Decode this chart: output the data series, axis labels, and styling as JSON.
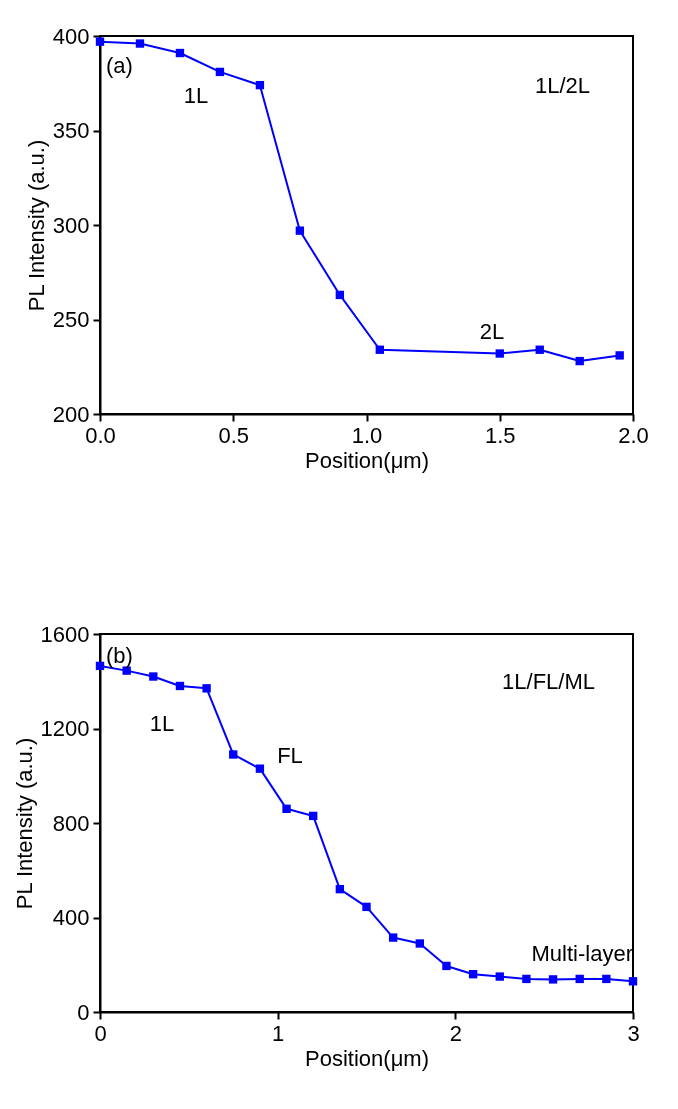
{
  "chart_data": [
    {
      "type": "line",
      "xlabel": "Position(μm)",
      "ylabel": "PL Intensity (a.u.)",
      "x": [
        0,
        0.15,
        0.3,
        0.45,
        0.6,
        0.75,
        0.9,
        1.05,
        1.5,
        1.65,
        1.8,
        1.95
      ],
      "series": [
        {
          "color": "#0000ff",
          "values": [
            397,
            396,
            391,
            381,
            374,
            297,
            263,
            234,
            232,
            234,
            228,
            231
          ]
        }
      ],
      "xlim": [
        0,
        2
      ],
      "xticks": [
        {
          "value": 0,
          "label": "0.0"
        },
        0.5,
        {
          "value": 1,
          "label": "1.0"
        },
        1.5,
        {
          "value": 2,
          "label": "2.0"
        }
      ],
      "ylim": [
        200,
        400
      ],
      "yticks": [
        200,
        250,
        300,
        350,
        400
      ],
      "grid": false,
      "marker": "square",
      "line_style": "solid",
      "annotations": [
        "(a)",
        "1L/2L",
        "1L",
        "2L"
      ]
    },
    {
      "type": "line",
      "xlabel": "Position(μm)",
      "ylabel": "PL Intensity (a.u.)",
      "x": [
        0,
        0.15,
        0.3,
        0.45,
        0.6,
        0.75,
        0.9,
        1.05,
        1.2,
        1.35,
        1.5,
        1.65,
        1.8,
        1.95,
        2.1,
        2.25,
        2.4,
        2.55,
        2.7,
        2.85,
        3.0
      ],
      "series": [
        {
          "color": "#0000ff",
          "values": [
            1465,
            1445,
            1420,
            1380,
            1370,
            1090,
            1030,
            860,
            830,
            520,
            445,
            315,
            290,
            195,
            160,
            150,
            140,
            138,
            140,
            140,
            130
          ]
        }
      ],
      "xlim": [
        0,
        3
      ],
      "xticks": [
        0,
        1,
        2,
        3
      ],
      "ylim": [
        0,
        1600
      ],
      "yticks": [
        0,
        400,
        800,
        1200,
        1600
      ],
      "grid": false,
      "marker": "square",
      "line_style": "solid",
      "annotations": [
        "(b)",
        "1L/FL/ML",
        "1L",
        "FL",
        "Multi-layer"
      ]
    }
  ]
}
